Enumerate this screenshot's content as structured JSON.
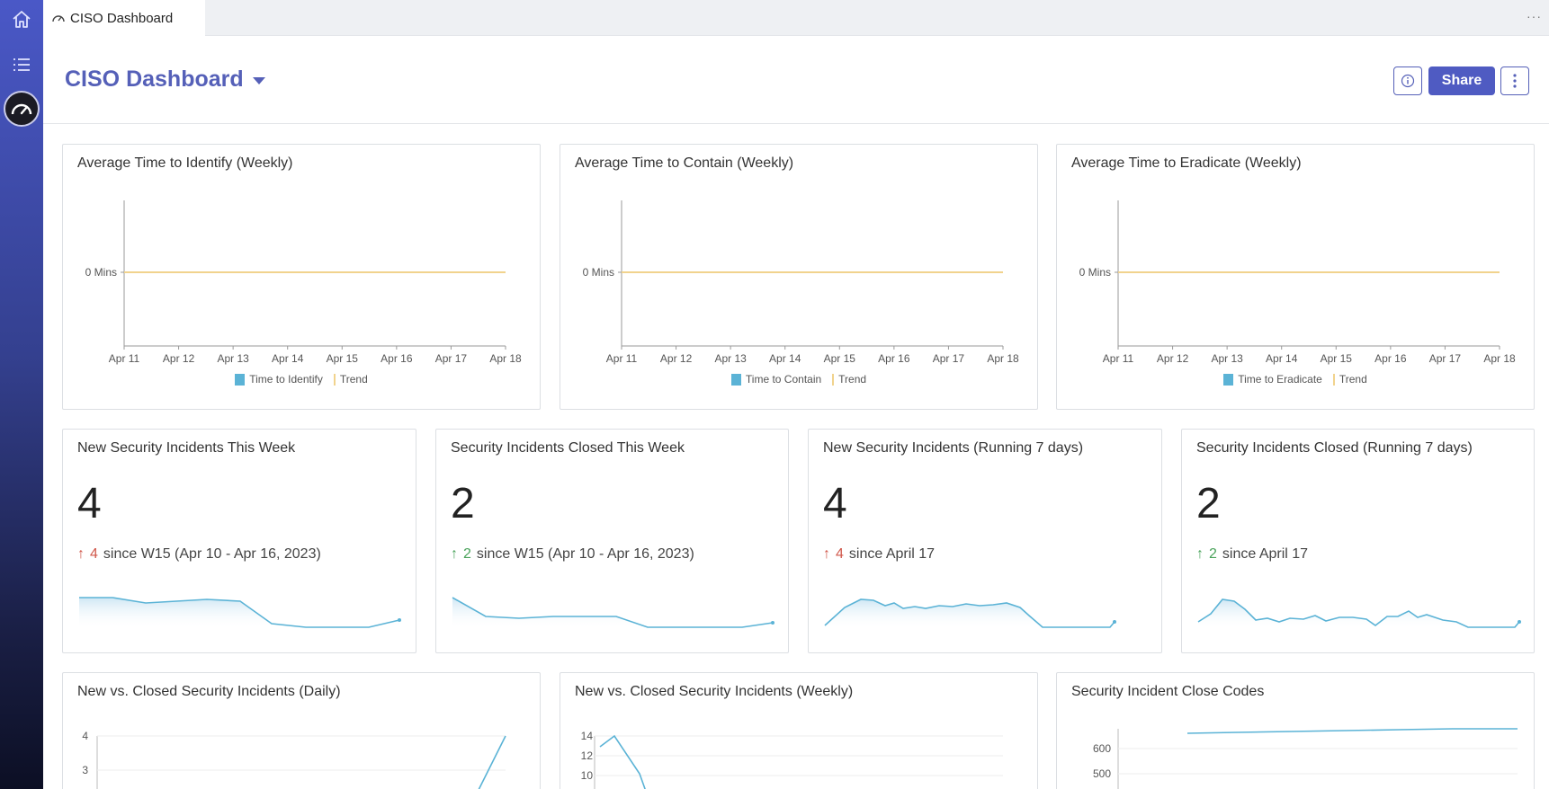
{
  "tab": {
    "label": "CISO Dashboard",
    "more": "···"
  },
  "header": {
    "title": "CISO Dashboard",
    "share_label": "Share"
  },
  "time_cards": [
    {
      "title": "Average Time to Identify (Weekly)",
      "y_label": "0 Mins",
      "legend": [
        "Time to Identify",
        "Trend"
      ]
    },
    {
      "title": "Average Time to Contain (Weekly)",
      "y_label": "0 Mins",
      "legend": [
        "Time to Contain",
        "Trend"
      ]
    },
    {
      "title": "Average Time to Eradicate (Weekly)",
      "y_label": "0 Mins",
      "legend": [
        "Time to Eradicate",
        "Trend"
      ]
    }
  ],
  "x_ticks": [
    "Apr 11",
    "Apr 12",
    "Apr 13",
    "Apr 14",
    "Apr 15",
    "Apr 16",
    "Apr 17",
    "Apr 18"
  ],
  "kpis": [
    {
      "title": "New Security Incidents This Week",
      "value": "4",
      "delta": "4",
      "since": "since W15 (Apr 10 - Apr 16, 2023)",
      "trend": "up-bad"
    },
    {
      "title": "Security Incidents Closed This Week",
      "value": "2",
      "delta": "2",
      "since": "since W15 (Apr 10 - Apr 16, 2023)",
      "trend": "up-good"
    },
    {
      "title": "New Security Incidents (Running 7 days)",
      "value": "4",
      "delta": "4",
      "since": "since April 17",
      "trend": "up-bad"
    },
    {
      "title": "Security Incidents Closed (Running 7 days)",
      "value": "2",
      "delta": "2",
      "since": "since April 17",
      "trend": "up-good"
    }
  ],
  "bottom_cards": [
    {
      "title": "New vs. Closed Security Incidents (Daily)",
      "y_ticks": [
        "4",
        "3"
      ]
    },
    {
      "title": "New vs. Closed Security Incidents (Weekly)",
      "y_ticks": [
        "14",
        "12",
        "10"
      ]
    },
    {
      "title": "Security Incident Close Codes",
      "y_ticks": [
        "600",
        "500"
      ]
    }
  ],
  "colors": {
    "accent": "#5560b8",
    "series": "#5bb3d6",
    "trend": "#f1d38d",
    "up_bad": "#d0574a",
    "up_good": "#4aa35b"
  },
  "icons": {
    "rail": [
      "home-icon",
      "list-icon",
      "dashboard-gauge-icon"
    ],
    "tab": "gauge-icon",
    "header": [
      "info-icon",
      "kebab-menu-icon"
    ]
  }
}
